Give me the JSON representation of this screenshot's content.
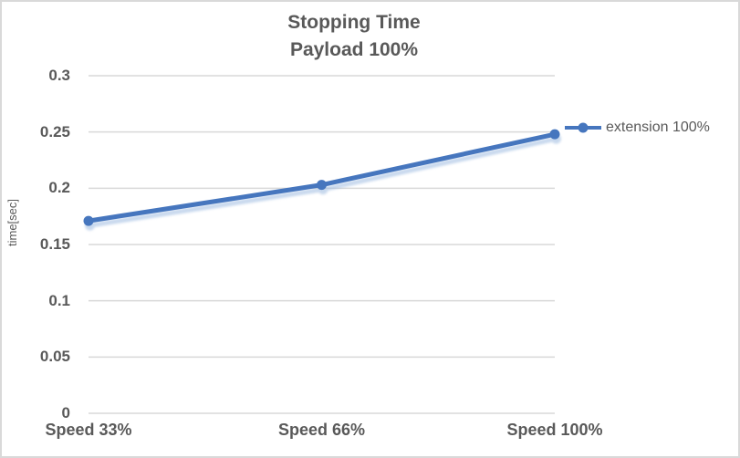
{
  "chart_data": {
    "type": "line",
    "title": "Stopping Time",
    "subtitle": "Payload 100%",
    "ylabel": "time[sec]",
    "xlabel": "",
    "categories": [
      "Speed 33%",
      "Speed 66%",
      "Speed 100%"
    ],
    "series": [
      {
        "name": "extension 100%",
        "values": [
          0.171,
          0.203,
          0.248
        ]
      }
    ],
    "ylim": [
      0,
      0.3
    ],
    "ytick_step": 0.05,
    "yticks": [
      "0",
      "0.05",
      "0.1",
      "0.15",
      "0.2",
      "0.25",
      "0.3"
    ],
    "grid": true,
    "legend_position": "right-of-last-point",
    "colors": {
      "line": "#4676BE",
      "line_shadow": "#9BB9E0",
      "gridline": "#d9d9d9",
      "text": "#595959",
      "background": "#ffffff",
      "border": "#d9d9d9"
    }
  }
}
